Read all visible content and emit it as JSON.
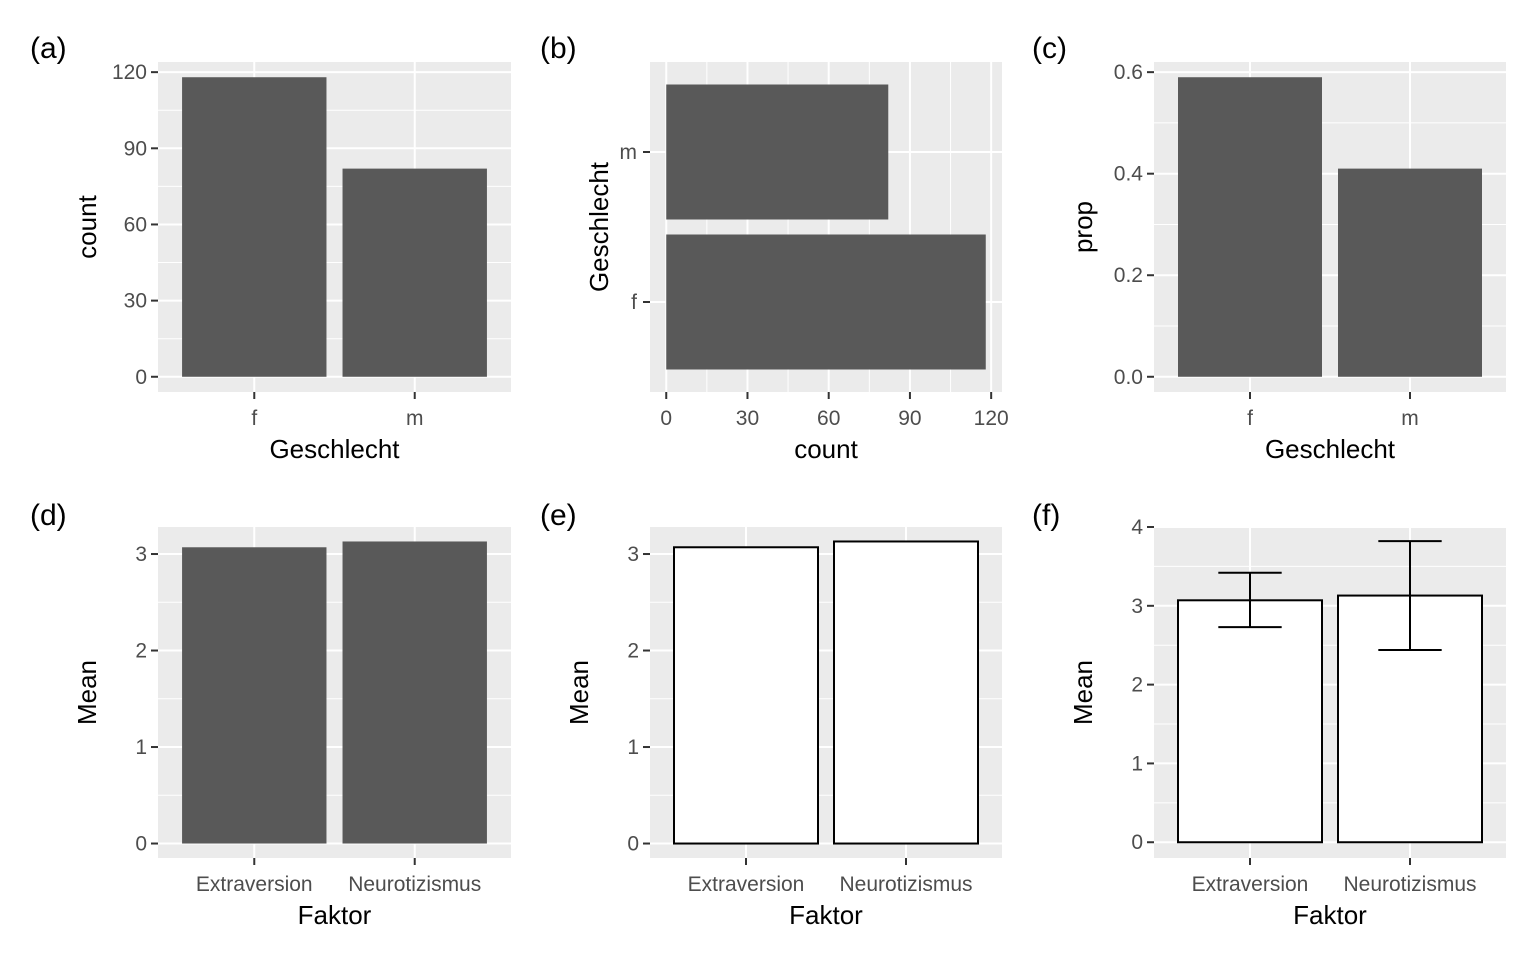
{
  "chart_data": [
    {
      "id": "a",
      "panel_label": "(a)",
      "type": "bar",
      "orientation": "vertical",
      "categories": [
        "f",
        "m"
      ],
      "values": [
        118,
        82
      ],
      "xlabel": "Geschlecht",
      "ylabel": "count",
      "ylim": [
        -6,
        124
      ],
      "yticks": [
        0,
        30,
        60,
        90,
        120
      ],
      "ytick_labels": [
        "0",
        "30",
        "60",
        "90",
        "120"
      ],
      "fill": "#595959",
      "stroke": "none",
      "grid": true,
      "background": "#ebebeb"
    },
    {
      "id": "b",
      "panel_label": "(b)",
      "type": "bar",
      "orientation": "horizontal",
      "categories": [
        "f",
        "m"
      ],
      "values": [
        118,
        82
      ],
      "xlabel": "count",
      "ylabel": "Geschlecht",
      "xlim": [
        -6,
        124
      ],
      "xticks": [
        0,
        30,
        60,
        90,
        120
      ],
      "xtick_labels": [
        "0",
        "30",
        "60",
        "90",
        "120"
      ],
      "fill": "#595959",
      "stroke": "none",
      "grid": true,
      "background": "#ebebeb"
    },
    {
      "id": "c",
      "panel_label": "(c)",
      "type": "bar",
      "orientation": "vertical",
      "categories": [
        "f",
        "m"
      ],
      "values": [
        0.59,
        0.41
      ],
      "xlabel": "Geschlecht",
      "ylabel": "prop",
      "ylim": [
        -0.03,
        0.62
      ],
      "yticks": [
        0,
        0.2,
        0.4,
        0.6
      ],
      "ytick_labels": [
        "0.0",
        "0.2",
        "0.4",
        "0.6"
      ],
      "fill": "#595959",
      "stroke": "none",
      "grid": true,
      "background": "#ebebeb"
    },
    {
      "id": "d",
      "panel_label": "(d)",
      "type": "bar",
      "orientation": "vertical",
      "categories": [
        "Extraversion",
        "Neurotizismus"
      ],
      "values": [
        3.07,
        3.13
      ],
      "xlabel": "Faktor",
      "ylabel": "Mean",
      "ylim": [
        -0.15,
        3.28
      ],
      "yticks": [
        0,
        1,
        2,
        3
      ],
      "ytick_labels": [
        "0",
        "1",
        "2",
        "3"
      ],
      "fill": "#595959",
      "stroke": "none",
      "grid": true,
      "background": "#ebebeb"
    },
    {
      "id": "e",
      "panel_label": "(e)",
      "type": "bar",
      "orientation": "vertical",
      "categories": [
        "Extraversion",
        "Neurotizismus"
      ],
      "values": [
        3.07,
        3.13
      ],
      "xlabel": "Faktor",
      "ylabel": "Mean",
      "ylim": [
        -0.15,
        3.28
      ],
      "yticks": [
        0,
        1,
        2,
        3
      ],
      "ytick_labels": [
        "0",
        "1",
        "2",
        "3"
      ],
      "fill": "#ffffff",
      "stroke": "#000000",
      "grid": true,
      "background": "#ebebeb"
    },
    {
      "id": "f",
      "panel_label": "(f)",
      "type": "bar",
      "orientation": "vertical",
      "categories": [
        "Extraversion",
        "Neurotizismus"
      ],
      "values": [
        3.07,
        3.13
      ],
      "error_low": [
        2.73,
        2.44
      ],
      "error_high": [
        3.42,
        3.82
      ],
      "xlabel": "Faktor",
      "ylabel": "Mean",
      "ylim": [
        -0.2,
        4.0
      ],
      "yticks": [
        0,
        1,
        2,
        3,
        4
      ],
      "ytick_labels": [
        "0",
        "1",
        "2",
        "3",
        "4"
      ],
      "fill": "#ffffff",
      "stroke": "#000000",
      "grid": true,
      "background": "#ebebeb"
    }
  ]
}
